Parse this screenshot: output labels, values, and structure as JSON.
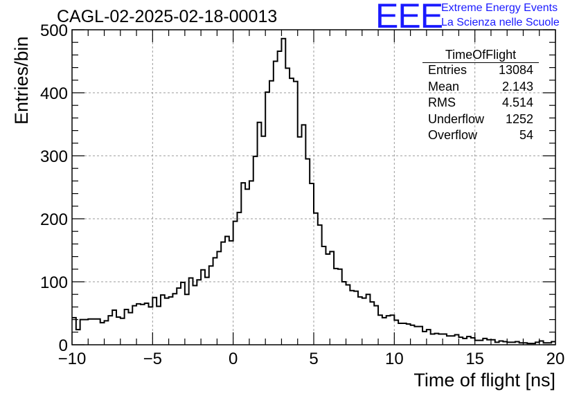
{
  "header": {
    "title": "CAGL-02-2025-02-18-00013"
  },
  "logo": {
    "mark": "EEE",
    "line1": "Extreme Energy Events",
    "line2": "La Scienza nelle Scuole",
    "color": "#1a1aff"
  },
  "stats_box": {
    "title": "TimeOfFlight",
    "rows": [
      {
        "key": "Entries",
        "value": "13084"
      },
      {
        "key": "Mean",
        "value": "2.143"
      },
      {
        "key": "RMS",
        "value": "4.514"
      },
      {
        "key": "Underflow",
        "value": "1252"
      },
      {
        "key": "Overflow",
        "value": "54"
      }
    ]
  },
  "chart_data": {
    "type": "histogram",
    "xlabel": "Time of flight [ns]",
    "ylabel": "Entries/bin",
    "xlim": [
      -10,
      20
    ],
    "ylim": [
      0,
      500
    ],
    "xticks": [
      -10,
      -5,
      0,
      5,
      10,
      15,
      20
    ],
    "yticks": [
      0,
      100,
      200,
      300,
      400,
      500
    ],
    "grid": true,
    "bin_width": 0.25,
    "bin_start": -10,
    "values": [
      43,
      24,
      40,
      40,
      41,
      41,
      41,
      35,
      38,
      46,
      55,
      44,
      42,
      56,
      51,
      62,
      65,
      64,
      66,
      60,
      75,
      61,
      79,
      74,
      76,
      81,
      90,
      99,
      80,
      106,
      94,
      103,
      119,
      107,
      125,
      138,
      148,
      163,
      172,
      165,
      196,
      210,
      257,
      247,
      260,
      299,
      353,
      331,
      401,
      419,
      450,
      466,
      486,
      439,
      423,
      418,
      330,
      349,
      295,
      256,
      209,
      190,
      156,
      144,
      148,
      121,
      120,
      100,
      95,
      86,
      85,
      76,
      74,
      80,
      68,
      62,
      47,
      43,
      46,
      47,
      39,
      34,
      34,
      33,
      31,
      29,
      29,
      21,
      24,
      17,
      18,
      17,
      17,
      14,
      14,
      16,
      12,
      10,
      13,
      11,
      7,
      7,
      10,
      8,
      8,
      4,
      6,
      5,
      4,
      4,
      5,
      3,
      3,
      2,
      2,
      4,
      6,
      3,
      3,
      5
    ]
  }
}
